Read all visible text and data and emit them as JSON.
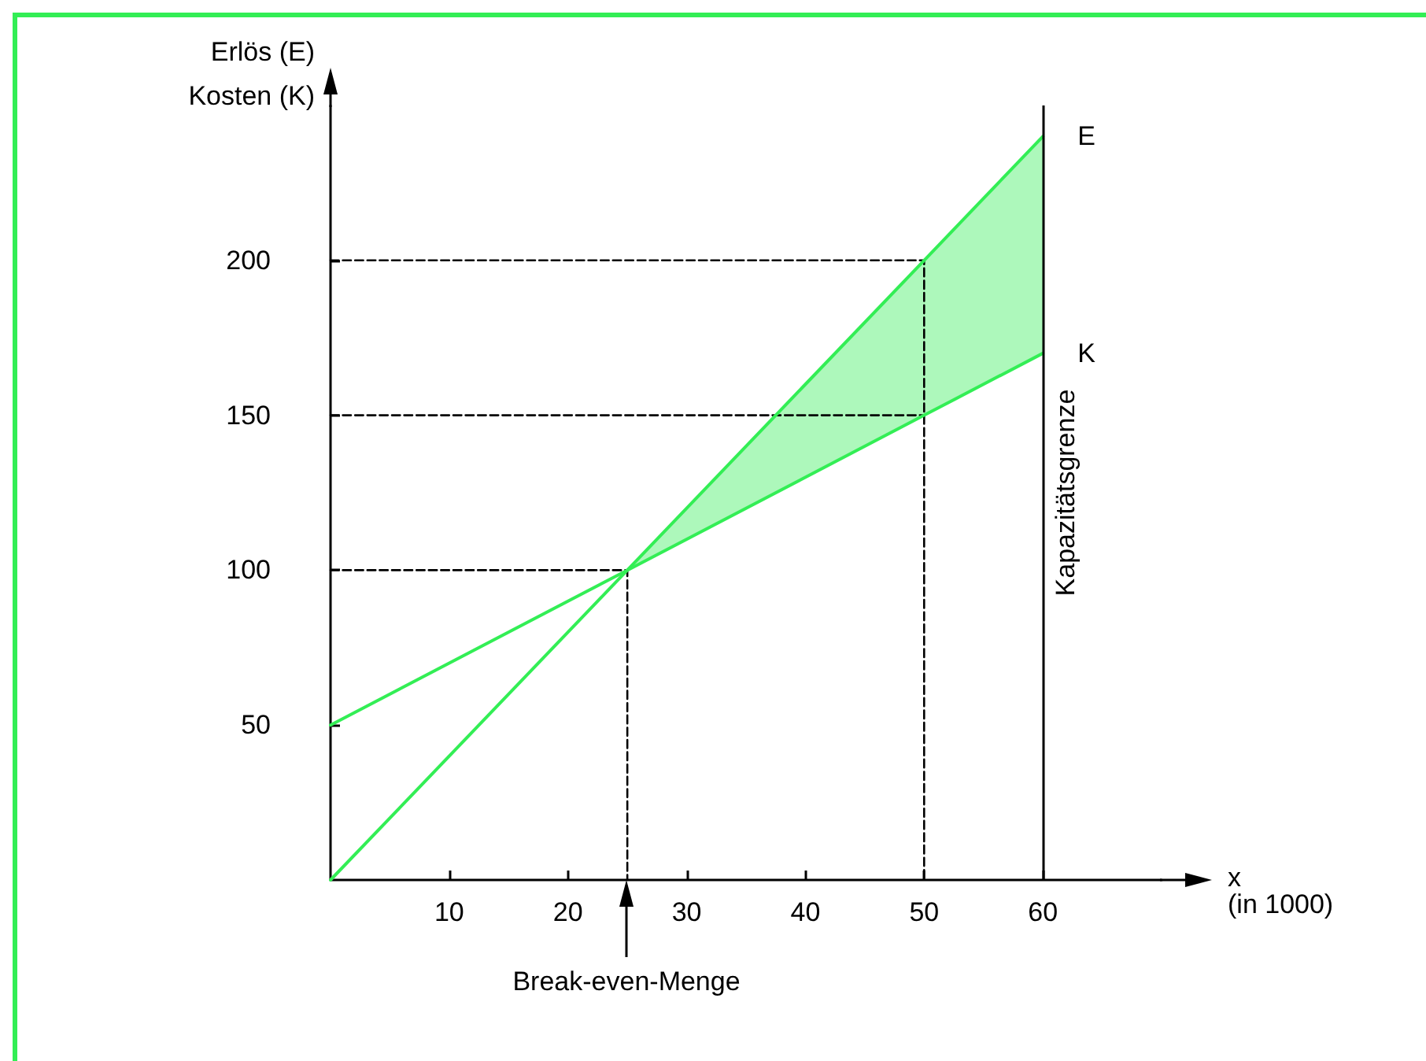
{
  "chart_data": {
    "type": "line",
    "ylabel": "Erlös (E)\nKosten (K)",
    "xlabel": "x\n(in 1000)",
    "xlim": [
      0,
      70
    ],
    "xticks": [
      10,
      20,
      30,
      40,
      50,
      60
    ],
    "ylim": [
      0,
      250
    ],
    "yticks": [
      50,
      100,
      150,
      200
    ],
    "grid": false,
    "legend": false,
    "marker": "none",
    "series": [
      {
        "name": "E",
        "color": "#33ee55",
        "x": [
          0,
          25,
          50,
          60
        ],
        "values": [
          0,
          100,
          200,
          240
        ],
        "lower": [
          null,
          100,
          150,
          170
        ],
        "upper": [
          null,
          100,
          200,
          240
        ]
      },
      {
        "name": "K",
        "color": "#33ee55",
        "x": [
          0,
          25,
          50,
          60
        ],
        "values": [
          50,
          100,
          150,
          170
        ]
      },
      {
        "color": "#000000",
        "line_style": "dashed",
        "x": [
          0,
          25,
          25
        ],
        "values": [
          100,
          100,
          0
        ]
      },
      {
        "color": "#000000",
        "line_style": "dashed",
        "x": [
          0,
          50,
          50
        ],
        "values": [
          200,
          200,
          0
        ]
      },
      {
        "color": "#000000",
        "line_style": "dashed",
        "x": [
          0,
          50
        ],
        "values": [
          150,
          150
        ]
      }
    ],
    "ref_lines": [
      {
        "axis": "x",
        "value": 60,
        "label": "Kapazitätsgrenze",
        "color": "#000000"
      }
    ],
    "annotations": [
      "Break-even-Menge"
    ]
  }
}
